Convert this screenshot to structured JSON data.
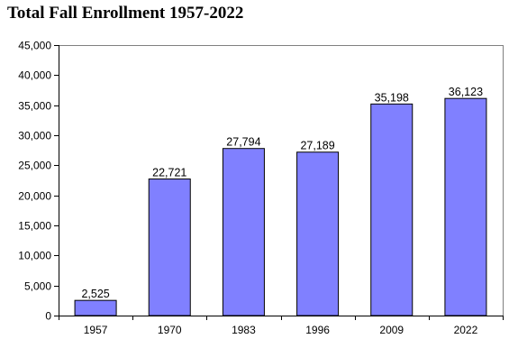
{
  "chart_data": {
    "type": "bar",
    "title": "Total Fall Enrollment 1957-2022",
    "xlabel": "",
    "ylabel": "",
    "categories": [
      "1957",
      "1970",
      "1983",
      "1996",
      "2009",
      "2022"
    ],
    "values": [
      2525,
      22721,
      27794,
      27189,
      35198,
      36123
    ],
    "data_labels": [
      "2,525",
      "22,721",
      "27,794",
      "27,189",
      "35,198",
      "36,123"
    ],
    "ylim": [
      0,
      45000
    ],
    "yticks": [
      0,
      5000,
      10000,
      15000,
      20000,
      25000,
      30000,
      35000,
      40000,
      45000
    ],
    "ytick_labels": [
      "0",
      "5,000",
      "10,000",
      "15,000",
      "20,000",
      "25,000",
      "30,000",
      "35,000",
      "40,000",
      "45,000"
    ],
    "grid": false,
    "bar_color": "#8080ff",
    "legend": "none"
  }
}
